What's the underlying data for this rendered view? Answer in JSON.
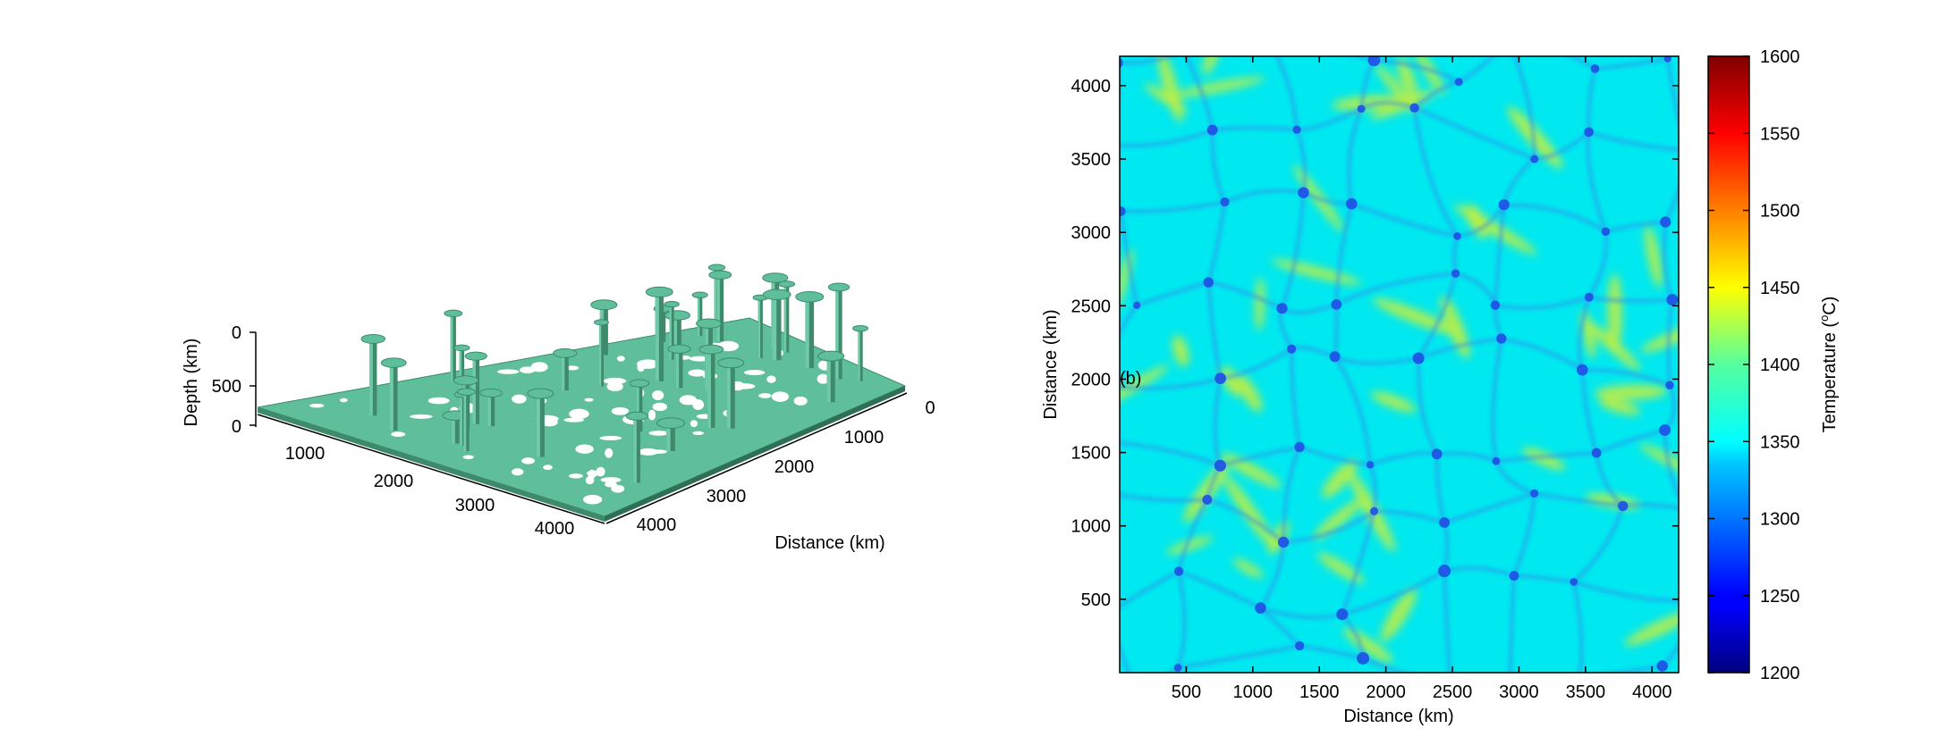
{
  "chart_data": [
    {
      "type": "other",
      "subtype": "3d-isosurface",
      "title": "",
      "surface_color": "#5fbf9a",
      "x_ticks": [
        "1000",
        "2000",
        "3000",
        "4000"
      ],
      "y_ticks": [
        "0",
        "1000",
        "2000",
        "3000",
        "4000"
      ],
      "z_ticks": [
        "0",
        "500",
        "0"
      ],
      "xlabel": "",
      "ylabel": "Distance (km)",
      "zlabel": "Depth (km)"
    },
    {
      "type": "heatmap",
      "panel_label": "(b)",
      "xlabel": "Distance (km)",
      "ylabel": "Distance (km)",
      "xlim": [
        0,
        4200
      ],
      "ylim": [
        0,
        4200
      ],
      "x_ticks": [
        500,
        1000,
        1500,
        2000,
        2500,
        3000,
        3500,
        4000
      ],
      "y_ticks": [
        500,
        1000,
        1500,
        2000,
        2500,
        3000,
        3500,
        4000
      ],
      "colorbar": {
        "label_main": "Temperature (",
        "label_sup": "o",
        "label_end": "C)",
        "range": [
          1200,
          1600
        ],
        "ticks": [
          1200,
          1250,
          1300,
          1350,
          1400,
          1450,
          1500,
          1550,
          1600
        ],
        "colormap": "jet"
      },
      "background_value": 1360,
      "background_color": "#00e8f0",
      "cold_color": "#1f4fe6",
      "warm_color": "#c8ee3a"
    }
  ]
}
